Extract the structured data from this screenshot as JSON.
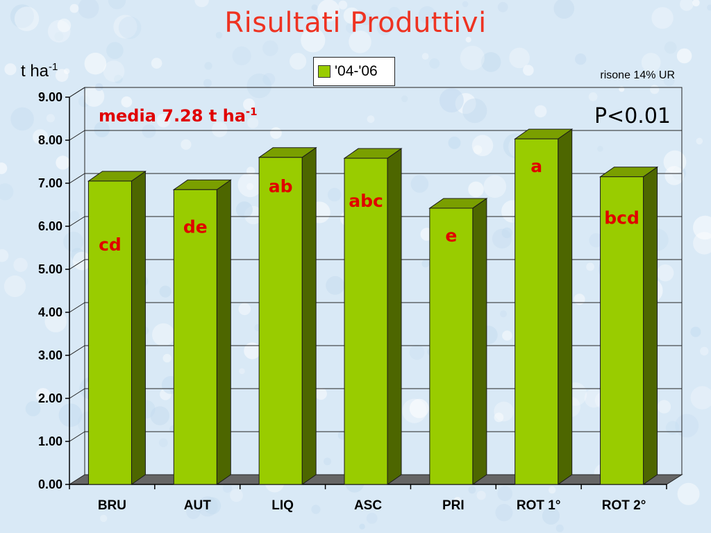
{
  "slide": {
    "title": "Risultati Produttivi",
    "unit_text": "t ha",
    "unit_exp": "-1",
    "note": "risone 14% UR",
    "mean_text": "media 7.28 t ha",
    "mean_exp": "-1",
    "pvalue": "P<0.01",
    "colors": {
      "background": "#d9e9f6",
      "title": "#ee3322",
      "bar_front": "#99cc00",
      "bar_side": "#4d6600",
      "bar_top": "#7a9f00",
      "floor": "#666666",
      "letters": "#e00000"
    }
  },
  "chart_data": {
    "type": "bar",
    "title": "Risultati Produttivi",
    "ylabel": "t ha-1",
    "xlabel": "",
    "ylim": [
      0,
      9
    ],
    "yticks": [
      "0.00",
      "1.00",
      "2.00",
      "3.00",
      "4.00",
      "5.00",
      "6.00",
      "7.00",
      "8.00",
      "9.00"
    ],
    "categories": [
      "BRU",
      "AUT",
      "LIQ",
      "ASC",
      "PRI",
      "ROT 1°",
      "ROT 2°"
    ],
    "series": [
      {
        "name": "'04-'06",
        "values": [
          7.05,
          6.85,
          7.6,
          7.58,
          6.42,
          8.03,
          7.15
        ]
      }
    ],
    "significance_letters": [
      "cd",
      "de",
      "ab",
      "abc",
      "e",
      "a",
      "bcd"
    ],
    "legend": "top-center",
    "grid": true,
    "annotations": [
      "media 7.28 t ha-1",
      "P<0.01",
      "risone 14% UR"
    ]
  }
}
